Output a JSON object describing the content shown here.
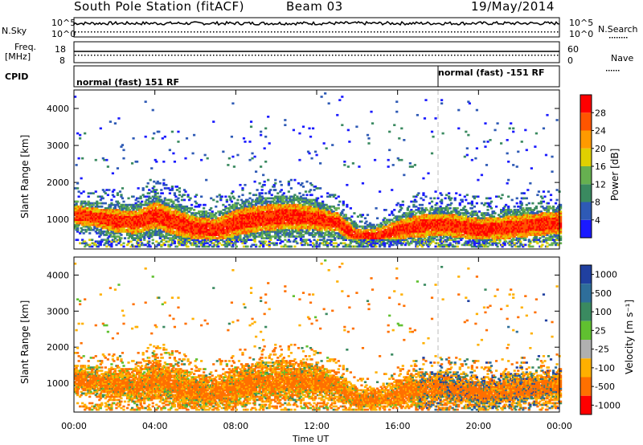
{
  "header": {
    "station": "South Pole Station (fitACF)",
    "beam": "Beam 03",
    "date": "19/May/2014"
  },
  "strip_labels": {
    "nsky": "N.Sky",
    "freq": "Freq.",
    "mhz": "[MHz]",
    "cpid": "CPID",
    "nsearch": "N.Search",
    "nave": "Nave",
    "exp10_5_left": "10^5",
    "exp10_0_left": "10^0",
    "exp10_5_right": "10^5",
    "exp10_0_right": "10^0",
    "freq_hi": "18",
    "freq_lo": "8",
    "nave_hi": "60",
    "nave_lo": "0"
  },
  "cpid_segments": [
    {
      "text": "normal (fast) 151 RF",
      "start_hour": 0
    },
    {
      "text": "normal (fast) -151 RF",
      "start_hour": 18
    }
  ],
  "chart_data": [
    {
      "type": "heatmap",
      "title": "",
      "ylabel": "Slant Range [km]",
      "xlabel": "",
      "xlim": [
        0,
        24
      ],
      "ylim": [
        200,
        4500
      ],
      "y_ticks": [
        "1000",
        "2000",
        "3000",
        "4000"
      ],
      "colorbar": {
        "label": "Power [dB]",
        "ticks": [
          "4",
          "8",
          "12",
          "16",
          "20",
          "24",
          "28"
        ],
        "colors": [
          "#1a1aff",
          "#2e5ab5",
          "#3a8a60",
          "#66b050",
          "#e0d000",
          "#ff9a00",
          "#ff5500",
          "#ff0000"
        ]
      },
      "band_center_km": [
        1100,
        1050,
        950,
        900,
        1100,
        900,
        750,
        700,
        900,
        1000,
        1050,
        1050,
        1000,
        900,
        500,
        550,
        700,
        800,
        850,
        800,
        700,
        750,
        800,
        850,
        900
      ],
      "band_half_width_km": [
        250,
        250,
        300,
        300,
        350,
        350,
        300,
        300,
        350,
        350,
        350,
        350,
        300,
        250,
        200,
        200,
        250,
        300,
        300,
        300,
        300,
        300,
        300,
        300,
        300
      ]
    },
    {
      "type": "heatmap",
      "title": "",
      "ylabel": "Slant Range [km]",
      "xlabel": "Time UT",
      "xlim": [
        0,
        24
      ],
      "ylim": [
        200,
        4500
      ],
      "x_ticks": [
        "00:00",
        "04:00",
        "08:00",
        "12:00",
        "16:00",
        "20:00",
        "00:00"
      ],
      "y_ticks": [
        "1000",
        "2000",
        "3000",
        "4000"
      ],
      "colorbar": {
        "label": "Velocity [m s⁻¹]",
        "ticks": [
          "1000",
          "500",
          "100",
          "25",
          "-25",
          "-100",
          "-500",
          "-1000"
        ],
        "colors": [
          "#2040a0",
          "#2e6e9a",
          "#3a8a60",
          "#60c030",
          "#b0b0b0",
          "#ffb000",
          "#ff7000",
          "#ff0000"
        ]
      }
    }
  ],
  "colors": {
    "vertical_line": "#bbbbbb"
  }
}
